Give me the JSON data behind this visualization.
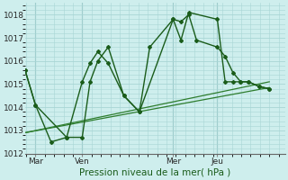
{
  "xlabel": "Pression niveau de la mer( hPa )",
  "bg_color": "#ceeeed",
  "grid_color": "#a8d5d5",
  "line_color_dark": "#1a5c1a",
  "line_color_light": "#2e7d2e",
  "ylim": [
    1012,
    1018.5
  ],
  "xlim": [
    0,
    100
  ],
  "yticks": [
    1012,
    1013,
    1014,
    1015,
    1016,
    1017,
    1018
  ],
  "xtick_labels": [
    "Mar",
    "Ven",
    "Mer",
    "Jeu"
  ],
  "xtick_positions": [
    4,
    22,
    57,
    74
  ],
  "vline_positions": [
    4,
    22,
    57,
    74
  ],
  "series1_x": [
    0,
    4,
    10,
    16,
    22,
    25,
    28,
    32,
    38,
    44,
    48,
    57,
    60,
    63,
    66,
    74,
    77,
    80,
    83,
    86,
    90,
    94
  ],
  "series1_y": [
    1015.6,
    1014.1,
    1012.5,
    1012.7,
    1015.1,
    1015.9,
    1016.4,
    1015.9,
    1014.5,
    1013.8,
    1016.6,
    1017.8,
    1017.7,
    1018.0,
    1016.9,
    1016.6,
    1016.2,
    1015.5,
    1015.1,
    1015.1,
    1014.9,
    1014.8
  ],
  "series2_x": [
    0,
    4,
    16,
    22,
    25,
    28,
    32,
    38,
    44,
    57,
    60,
    63,
    74,
    77,
    80,
    83,
    86,
    90,
    94
  ],
  "series2_y": [
    1015.6,
    1014.1,
    1012.7,
    1012.7,
    1015.1,
    1016.0,
    1016.6,
    1014.5,
    1013.8,
    1017.8,
    1016.9,
    1018.1,
    1017.8,
    1015.1,
    1015.1,
    1015.1,
    1015.1,
    1014.9,
    1014.8
  ],
  "series3_x": [
    0,
    94
  ],
  "series3_y": [
    1012.9,
    1015.1
  ],
  "series4_x": [
    0,
    94
  ],
  "series4_y": [
    1012.9,
    1014.85
  ]
}
